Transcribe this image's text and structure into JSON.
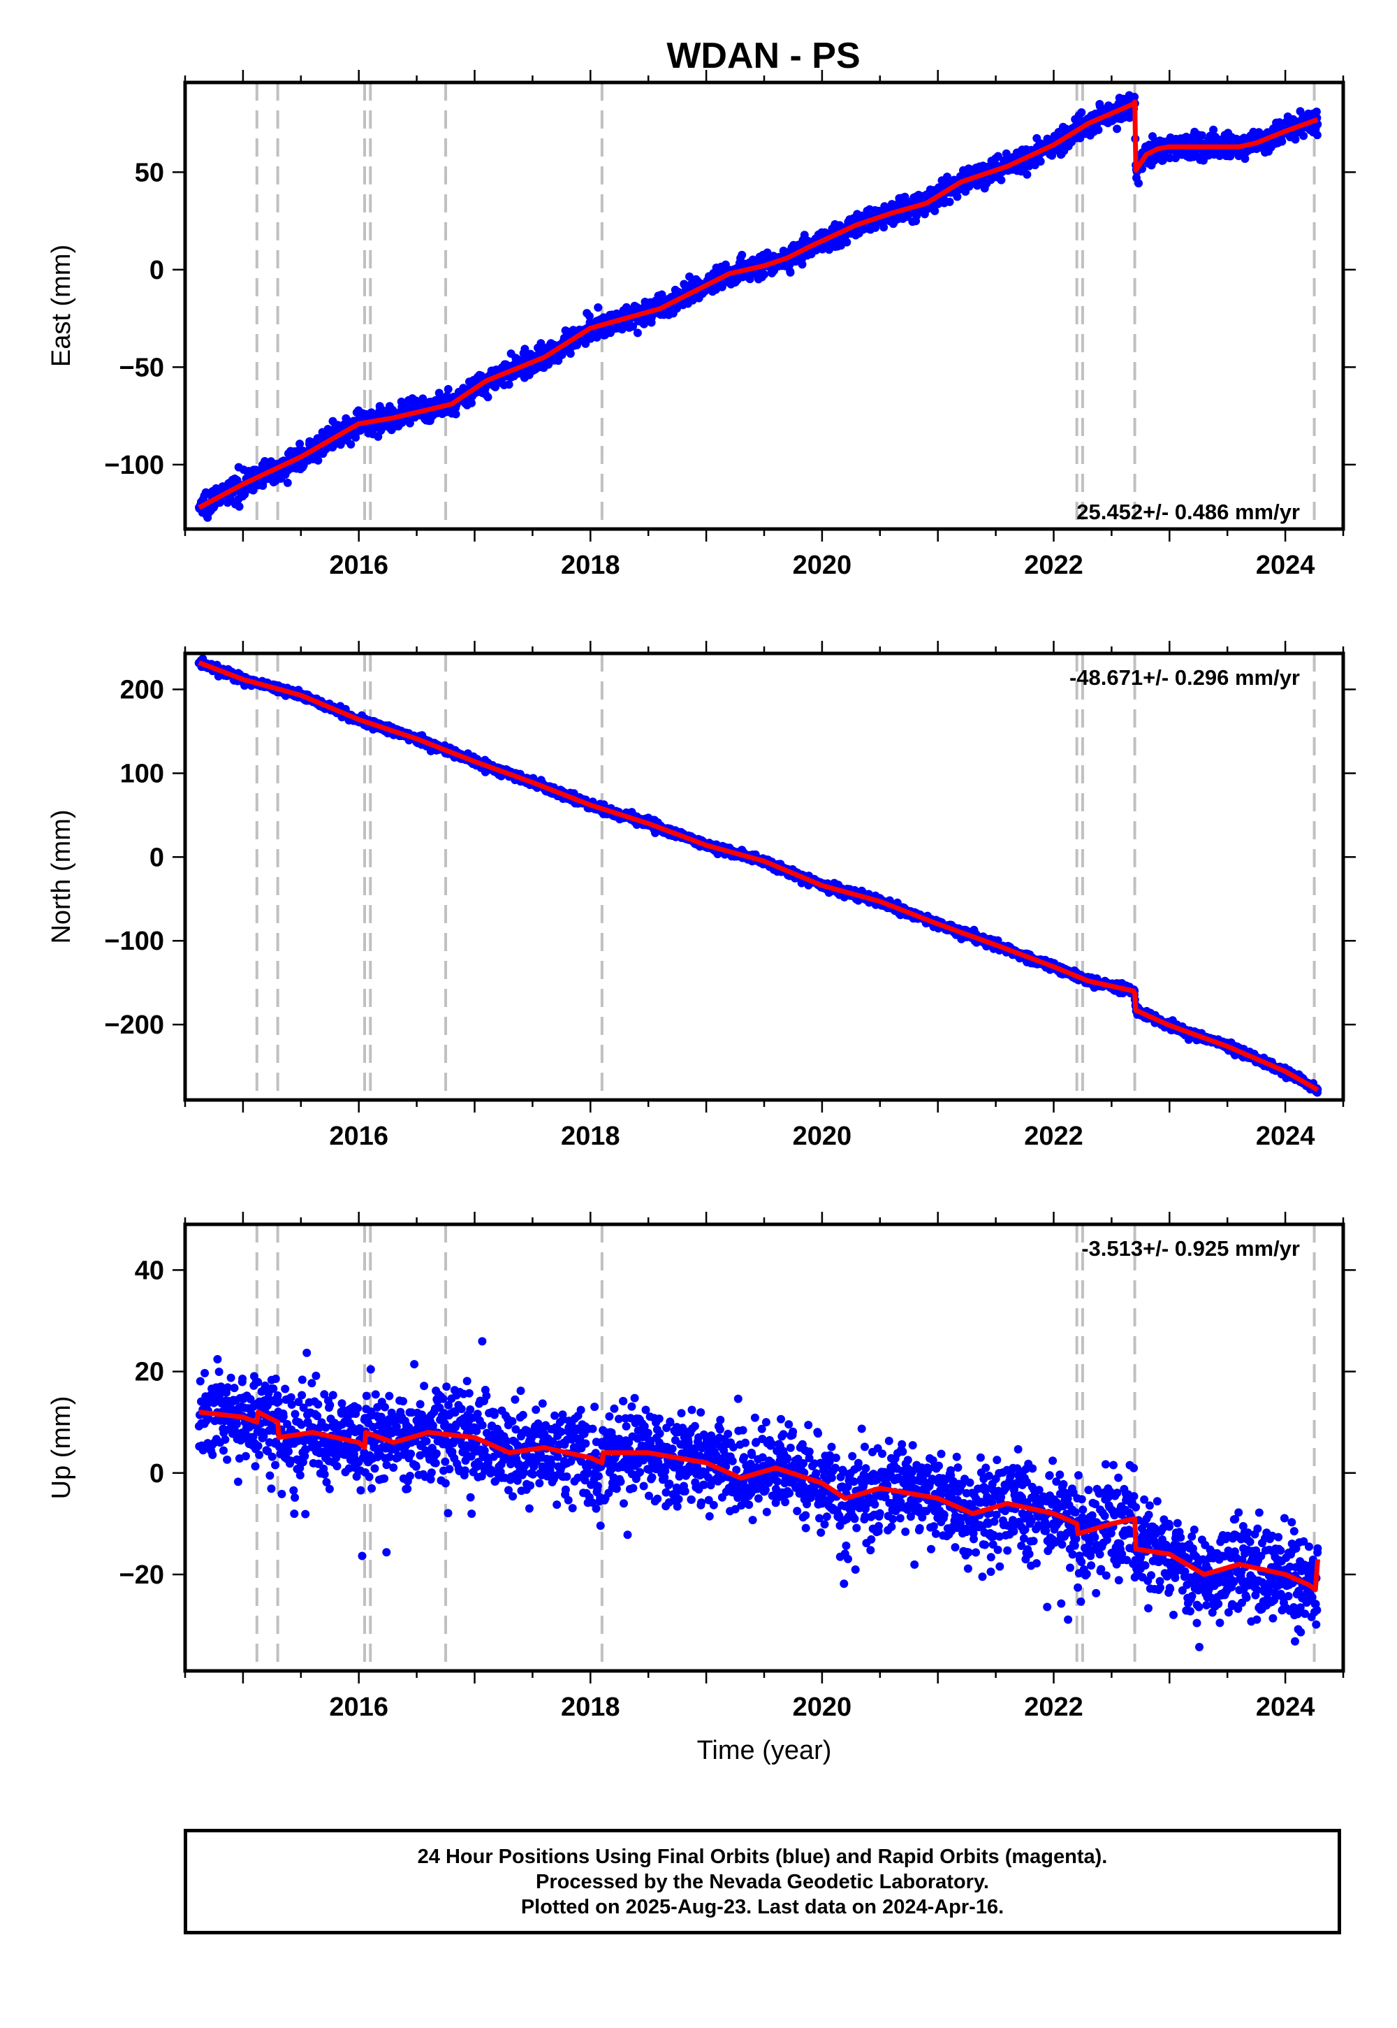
{
  "title": "WDAN - PS",
  "colors": {
    "final_orbits": "#0000ff",
    "model": "#ff0000",
    "event_line": "#c0c0c0",
    "axis": "#000000"
  },
  "footer": {
    "line1": "24 Hour Positions Using Final Orbits (blue) and Rapid Orbits (magenta).",
    "line2": "Processed by the Nevada Geodetic Laboratory.",
    "line3": "Plotted on 2025-Aug-23. Last data on 2024-Apr-16."
  },
  "chart_data": [
    {
      "type": "scatter",
      "component": "east",
      "ylabel": "East (mm)",
      "xlabel": "",
      "xlim": [
        2014.5,
        2024.5
      ],
      "ylim": [
        -133,
        96
      ],
      "yticks": [
        -100,
        -50,
        0,
        50
      ],
      "xticks": [
        2016,
        2018,
        2020,
        2022,
        2024
      ],
      "rate_label": "25.452+/- 0.486 mm/yr",
      "rate_label_position": "bottom-right",
      "event_lines": [
        2015.12,
        2015.3,
        2016.05,
        2016.1,
        2016.75,
        2018.1,
        2022.2,
        2022.25,
        2022.7,
        2024.25
      ],
      "model": {
        "x": [
          2014.62,
          2015.0,
          2015.5,
          2016.0,
          2016.3,
          2016.8,
          2017.1,
          2017.6,
          2018.0,
          2018.6,
          2018.9,
          2019.2,
          2019.5,
          2019.7,
          2019.9,
          2020.3,
          2020.6,
          2020.9,
          2021.2,
          2021.6,
          2022.0,
          2022.3,
          2022.69,
          2022.7,
          2022.71,
          2022.8,
          2022.9,
          2023.0,
          2023.3,
          2023.6,
          2023.75,
          2024.0,
          2024.28
        ],
        "y": [
          -122,
          -110,
          -96,
          -79,
          -76,
          -69,
          -57,
          -45,
          -30,
          -20,
          -11,
          -2,
          2,
          6,
          12,
          23,
          29,
          34,
          45,
          53,
          64,
          75,
          85,
          86,
          51,
          59,
          62,
          63,
          63,
          63,
          65,
          71,
          77
        ]
      },
      "noise": 3
    },
    {
      "type": "scatter",
      "component": "north",
      "ylabel": "North (mm)",
      "xlabel": "",
      "xlim": [
        2014.5,
        2024.5
      ],
      "ylim": [
        -290,
        243
      ],
      "yticks": [
        -200,
        -100,
        0,
        100,
        200
      ],
      "xticks": [
        2016,
        2018,
        2020,
        2022,
        2024
      ],
      "rate_label": "-48.671+/- 0.296 mm/yr",
      "rate_label_position": "top-right",
      "event_lines": [
        2015.12,
        2015.3,
        2016.05,
        2016.1,
        2016.75,
        2018.1,
        2022.2,
        2022.25,
        2022.7,
        2024.25
      ],
      "model": {
        "x": [
          2014.62,
          2015.0,
          2015.5,
          2016.0,
          2016.5,
          2017.0,
          2017.5,
          2018.0,
          2018.5,
          2019.0,
          2019.5,
          2020.0,
          2020.5,
          2021.0,
          2021.5,
          2022.0,
          2022.3,
          2022.69,
          2022.7,
          2022.71,
          2023.0,
          2023.5,
          2024.0,
          2024.28
        ],
        "y": [
          232,
          212,
          193,
          164,
          141,
          114,
          89,
          62,
          40,
          14,
          -5,
          -34,
          -53,
          -80,
          -105,
          -131,
          -148,
          -160,
          -163,
          -183,
          -201,
          -226,
          -256,
          -278
        ]
      },
      "noise": 2.5
    },
    {
      "type": "scatter",
      "component": "up",
      "ylabel": "Up (mm)",
      "xlabel": "Time (year)",
      "xlim": [
        2014.5,
        2024.5
      ],
      "ylim": [
        -39,
        49
      ],
      "yticks": [
        -20,
        0,
        20,
        40
      ],
      "xticks": [
        2016,
        2018,
        2020,
        2022,
        2024
      ],
      "rate_label": "-3.513+/- 0.925 mm/yr",
      "rate_label_position": "top-right",
      "event_lines": [
        2015.12,
        2015.3,
        2016.05,
        2016.1,
        2016.75,
        2018.1,
        2022.2,
        2022.25,
        2022.7,
        2024.25
      ],
      "model": {
        "x": [
          2014.62,
          2015.0,
          2015.12,
          2015.13,
          2015.3,
          2015.31,
          2015.6,
          2016.0,
          2016.05,
          2016.06,
          2016.3,
          2016.6,
          2017.0,
          2017.3,
          2017.6,
          2018.0,
          2018.1,
          2018.11,
          2018.5,
          2019.0,
          2019.3,
          2019.6,
          2020.0,
          2020.2,
          2020.5,
          2021.0,
          2021.3,
          2021.6,
          2022.0,
          2022.2,
          2022.21,
          2022.5,
          2022.7,
          2022.71,
          2023.0,
          2023.3,
          2023.6,
          2024.0,
          2024.2,
          2024.26,
          2024.28
        ],
        "y": [
          12,
          11,
          10,
          12,
          10,
          7,
          8,
          6,
          5,
          8,
          6,
          8,
          7,
          4,
          5,
          3,
          2,
          4,
          4,
          2,
          -1,
          1,
          -2,
          -5,
          -3,
          -5,
          -8,
          -6,
          -8,
          -10,
          -12,
          -10,
          -9,
          -15,
          -16,
          -20,
          -18,
          -20,
          -22,
          -23,
          -17
        ]
      },
      "noise": 4.5
    }
  ]
}
